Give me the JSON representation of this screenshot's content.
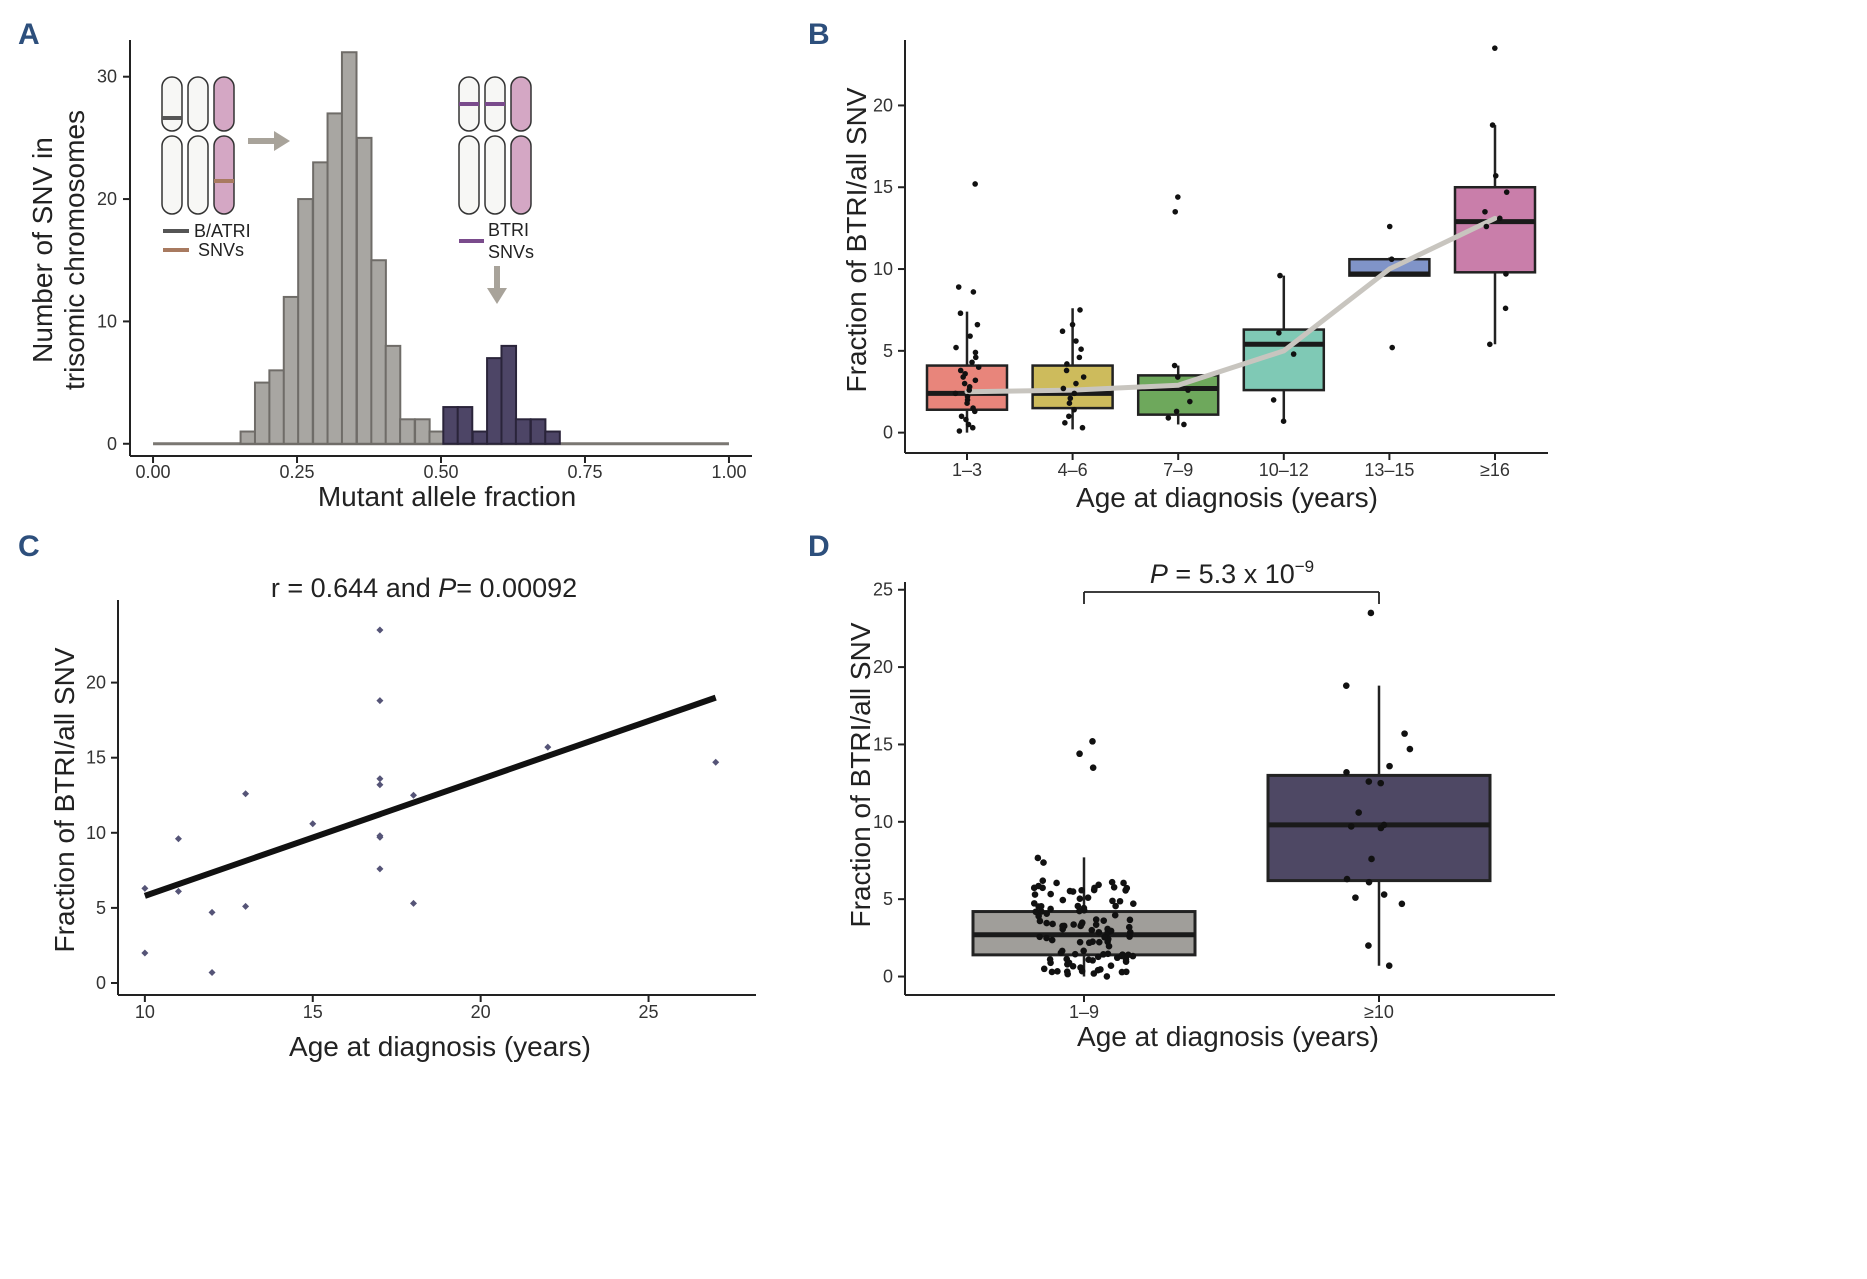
{
  "panels": {
    "A": {
      "label": "A",
      "chart_data": {
        "type": "bar",
        "subtype": "histogram",
        "xlabel": "Mutant allele fraction",
        "ylabel_line1": "Number of SNV in",
        "ylabel_line2": "trisomic chromosomes",
        "xlim": [
          -0.04,
          1.04
        ],
        "ylim": [
          -1,
          33
        ],
        "xticks": [
          0.0,
          0.25,
          0.5,
          0.75,
          1.0
        ],
        "xtick_labels": [
          "0.00",
          "0.25",
          "0.50",
          "0.75",
          "1.00"
        ],
        "yticks": [
          0,
          10,
          20,
          30
        ],
        "ytick_labels": [
          "0",
          "10",
          "20",
          "30"
        ],
        "bin_width": 0.0253,
        "series": [
          {
            "name": "B/ATRI SNVs",
            "color": "#a8a6a2",
            "bins": [
              [
                0.152,
                1
              ],
              [
                0.177,
                5
              ],
              [
                0.202,
                6
              ],
              [
                0.227,
                12
              ],
              [
                0.252,
                20
              ],
              [
                0.278,
                23
              ],
              [
                0.303,
                27
              ],
              [
                0.328,
                32
              ],
              [
                0.354,
                25
              ],
              [
                0.379,
                15
              ],
              [
                0.404,
                8
              ],
              [
                0.429,
                2
              ],
              [
                0.455,
                2
              ],
              [
                0.48,
                1
              ]
            ]
          },
          {
            "name": "BTRI SNVs",
            "color": "#4d4566",
            "bins": [
              [
                0.504,
                3
              ],
              [
                0.529,
                3
              ],
              [
                0.555,
                1
              ],
              [
                0.58,
                7
              ],
              [
                0.605,
                8
              ],
              [
                0.63,
                2
              ],
              [
                0.656,
                2
              ],
              [
                0.681,
                1
              ]
            ]
          }
        ],
        "baseline": [
          0.0,
          1.0
        ],
        "legend": {
          "line1": "B/ATRI",
          "line2": "SNVs",
          "line3": "BTRI",
          "line4": "SNVs"
        }
      }
    },
    "B": {
      "label": "B",
      "chart_data": {
        "type": "box",
        "xlabel": "Age at diagnosis (years)",
        "ylabel": "Fraction of BTRI/all SNV",
        "ylim": [
          -1,
          24
        ],
        "yticks": [
          0,
          5,
          10,
          15,
          20
        ],
        "ytick_labels": [
          "0",
          "5",
          "10",
          "15",
          "20"
        ],
        "categories": [
          "1–3",
          "4–6",
          "7–9",
          "10–12",
          "13–15",
          "≥16"
        ],
        "boxes": [
          {
            "q1": 1.4,
            "median": 2.4,
            "q3": 4.1,
            "lo": 0.0,
            "hi": 7.4,
            "color": "#e8857b"
          },
          {
            "q1": 1.5,
            "median": 2.4,
            "q3": 4.1,
            "lo": 0.2,
            "hi": 7.6,
            "color": "#cdbb5c"
          },
          {
            "q1": 1.1,
            "median": 2.7,
            "q3": 3.5,
            "lo": 0.5,
            "hi": 4.1,
            "color": "#6ea85c"
          },
          {
            "q1": 2.6,
            "median": 5.4,
            "q3": 6.3,
            "lo": 0.7,
            "hi": 9.6,
            "color": "#7fc9b5"
          },
          {
            "q1": 9.6,
            "median": 9.7,
            "q3": 10.6,
            "lo": 9.6,
            "hi": 10.7,
            "color": "#8094c8"
          },
          {
            "q1": 9.8,
            "median": 12.9,
            "q3": 15.0,
            "lo": 5.4,
            "hi": 18.8,
            "color": "#c97eaa"
          }
        ],
        "outliers": [
          [
            0,
            15.2
          ],
          [
            2,
            14.4
          ],
          [
            2,
            13.5
          ],
          [
            5,
            23.5
          ]
        ],
        "points": [
          [
            0,
            0.1
          ],
          [
            0,
            0.3
          ],
          [
            0,
            0.5
          ],
          [
            0,
            0.8
          ],
          [
            0,
            1.0
          ],
          [
            0,
            1.3
          ],
          [
            0,
            1.5
          ],
          [
            0,
            1.8
          ],
          [
            0,
            2.0
          ],
          [
            0,
            2.2
          ],
          [
            0,
            2.4
          ],
          [
            0,
            2.6
          ],
          [
            0,
            2.8
          ],
          [
            0,
            3.0
          ],
          [
            0,
            3.2
          ],
          [
            0,
            3.4
          ],
          [
            0,
            3.6
          ],
          [
            0,
            3.8
          ],
          [
            0,
            4.0
          ],
          [
            0,
            4.3
          ],
          [
            0,
            4.6
          ],
          [
            0,
            4.9
          ],
          [
            0,
            5.2
          ],
          [
            0,
            5.9
          ],
          [
            0,
            6.6
          ],
          [
            0,
            7.3
          ],
          [
            0,
            8.6
          ],
          [
            0,
            8.9
          ],
          [
            1,
            0.3
          ],
          [
            1,
            0.6
          ],
          [
            1,
            1.0
          ],
          [
            1,
            1.4
          ],
          [
            1,
            1.8
          ],
          [
            1,
            2.1
          ],
          [
            1,
            2.4
          ],
          [
            1,
            2.7
          ],
          [
            1,
            3.0
          ],
          [
            1,
            3.4
          ],
          [
            1,
            3.8
          ],
          [
            1,
            4.2
          ],
          [
            1,
            4.6
          ],
          [
            1,
            5.1
          ],
          [
            1,
            5.6
          ],
          [
            1,
            6.2
          ],
          [
            1,
            6.6
          ],
          [
            1,
            7.5
          ],
          [
            2,
            0.5
          ],
          [
            2,
            0.9
          ],
          [
            2,
            1.3
          ],
          [
            2,
            1.9
          ],
          [
            2,
            2.6
          ],
          [
            2,
            3.4
          ],
          [
            2,
            4.1
          ],
          [
            3,
            0.7
          ],
          [
            3,
            2.0
          ],
          [
            3,
            4.8
          ],
          [
            3,
            6.1
          ],
          [
            3,
            9.6
          ],
          [
            4,
            5.2
          ],
          [
            4,
            10.6
          ],
          [
            4,
            12.6
          ],
          [
            5,
            5.4
          ],
          [
            5,
            7.6
          ],
          [
            5,
            9.7
          ],
          [
            5,
            12.6
          ],
          [
            5,
            13.1
          ],
          [
            5,
            13.5
          ],
          [
            5,
            14.7
          ],
          [
            5,
            15.7
          ],
          [
            5,
            18.8
          ]
        ],
        "trend": [
          [
            0,
            2.5
          ],
          [
            1,
            2.6
          ],
          [
            2,
            2.9
          ],
          [
            3,
            5.0
          ],
          [
            4,
            10.0
          ],
          [
            5,
            13.1
          ]
        ]
      }
    },
    "C": {
      "label": "C",
      "title_pre": "r = 0.644 and ",
      "title_p": "P",
      "title_post": "= 0.00092",
      "chart_data": {
        "type": "scatter",
        "xlabel": "Age at diagnosis (years)",
        "ylabel": "Fraction of BTRI/all SNV",
        "xlim": [
          9.2,
          28.2
        ],
        "ylim": [
          -0.8,
          25.5
        ],
        "xticks": [
          10,
          15,
          20,
          25
        ],
        "xtick_labels": [
          "10",
          "15",
          "20",
          "25"
        ],
        "yticks": [
          0,
          5,
          10,
          15,
          20
        ],
        "ytick_labels": [
          "0",
          "5",
          "10",
          "15",
          "20"
        ],
        "points": [
          [
            10,
            6.3
          ],
          [
            10,
            2.0
          ],
          [
            11,
            9.6
          ],
          [
            11,
            6.1
          ],
          [
            12,
            4.7
          ],
          [
            12,
            0.7
          ],
          [
            13,
            12.6
          ],
          [
            13,
            5.1
          ],
          [
            15,
            10.6
          ],
          [
            17,
            23.5
          ],
          [
            17,
            18.8
          ],
          [
            17,
            13.6
          ],
          [
            17,
            13.2
          ],
          [
            17,
            9.8
          ],
          [
            17,
            9.7
          ],
          [
            17,
            7.6
          ],
          [
            18,
            12.5
          ],
          [
            18,
            5.3
          ],
          [
            22,
            15.7
          ],
          [
            27,
            14.7
          ]
        ],
        "regression": [
          [
            10,
            5.8
          ],
          [
            27,
            19.0
          ]
        ],
        "r": 0.644,
        "p": 0.00092
      }
    },
    "D": {
      "label": "D",
      "sig_p": "P",
      "sig_text": " = 5.3 x 10",
      "sig_exp": "−9",
      "chart_data": {
        "type": "box",
        "xlabel": "Age at diagnosis (years)",
        "ylabel": "Fraction of BTRI/all SNV",
        "ylim": [
          -1,
          25.5
        ],
        "yticks": [
          0,
          5,
          10,
          15,
          20,
          25
        ],
        "ytick_labels": [
          "0",
          "5",
          "10",
          "15",
          "20",
          "25"
        ],
        "categories": [
          "1–9",
          "≥10"
        ],
        "boxes": [
          {
            "q1": 1.4,
            "median": 2.7,
            "q3": 4.2,
            "lo": 0.0,
            "hi": 7.7,
            "color": "#a09e9a"
          },
          {
            "q1": 6.2,
            "median": 9.8,
            "q3": 13.0,
            "lo": 0.7,
            "hi": 18.8,
            "color": "#4e4864"
          }
        ],
        "outliers": [
          [
            0,
            15.2
          ],
          [
            0,
            14.4
          ],
          [
            0,
            13.5
          ],
          [
            1,
            23.5
          ]
        ],
        "points": [
          [
            1,
            0.7
          ],
          [
            1,
            2.0
          ],
          [
            1,
            4.7
          ],
          [
            1,
            5.1
          ],
          [
            1,
            5.3
          ],
          [
            1,
            6.1
          ],
          [
            1,
            6.3
          ],
          [
            1,
            7.6
          ],
          [
            1,
            9.6
          ],
          [
            1,
            9.7
          ],
          [
            1,
            9.8
          ],
          [
            1,
            10.6
          ],
          [
            1,
            12.5
          ],
          [
            1,
            12.6
          ],
          [
            1,
            13.2
          ],
          [
            1,
            13.6
          ],
          [
            1,
            14.7
          ],
          [
            1,
            15.7
          ],
          [
            1,
            18.8
          ]
        ],
        "dense_group": 0,
        "dense_count": 110
      }
    }
  }
}
